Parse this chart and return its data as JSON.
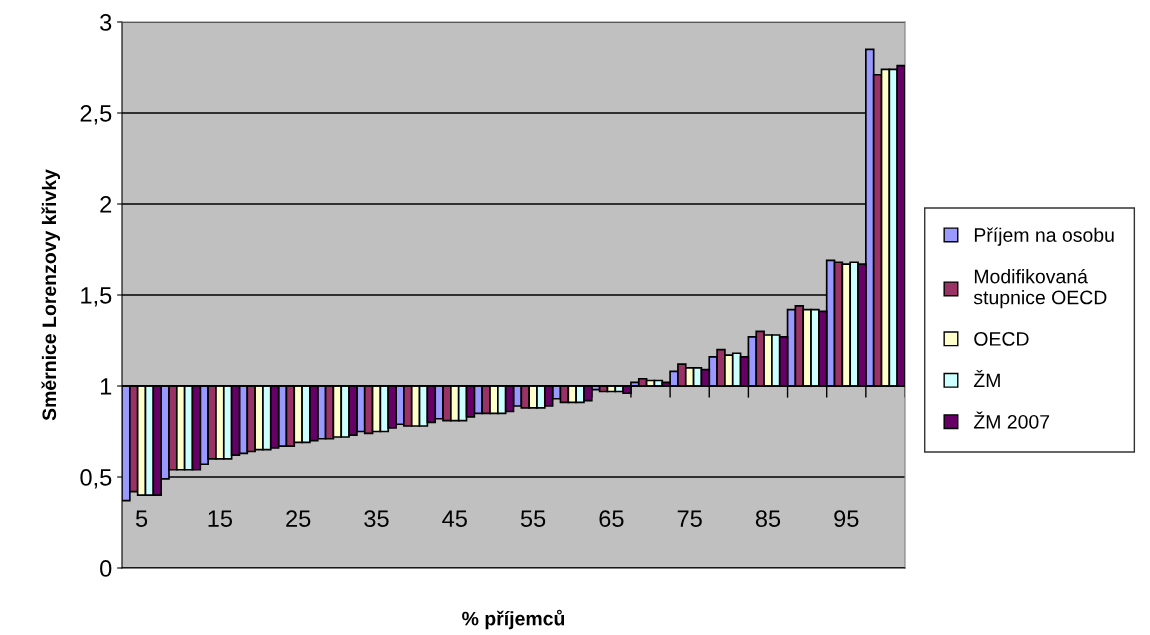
{
  "chart_data": {
    "type": "bar",
    "xlabel": "% příjemců",
    "ylabel": "Směrnice Lorenzovy křivky",
    "categories": [
      "5",
      null,
      "15",
      null,
      "25",
      null,
      "35",
      null,
      "45",
      null,
      "55",
      null,
      "65",
      null,
      "75",
      null,
      "85",
      null,
      "95",
      null
    ],
    "series": [
      {
        "name": "Příjem na osobu",
        "color": "#9999ff",
        "base": [
          1,
          1,
          1,
          1,
          1,
          1,
          1,
          1,
          1,
          1,
          1,
          1,
          1,
          1,
          1,
          1,
          1,
          1,
          1,
          1
        ],
        "values": [
          -0.63,
          -0.51,
          -0.43,
          -0.37,
          -0.33,
          -0.29,
          -0.25,
          -0.21,
          -0.18,
          -0.15,
          -0.11,
          -0.07,
          -0.02,
          0.02,
          0.08,
          0.16,
          0.27,
          0.42,
          0.69,
          1.85
        ]
      },
      {
        "name": "Modifikovaná\nstupnice OECD",
        "color": "#993366",
        "base": [
          1,
          1,
          1,
          1,
          1,
          1,
          1,
          1,
          1,
          1,
          1,
          1,
          1,
          1,
          1,
          1,
          1,
          1,
          1,
          1
        ],
        "values": [
          -0.58,
          -0.46,
          -0.4,
          -0.36,
          -0.33,
          -0.29,
          -0.26,
          -0.22,
          -0.19,
          -0.15,
          -0.12,
          -0.09,
          -0.03,
          0.04,
          0.12,
          0.2,
          0.3,
          0.44,
          0.68,
          1.71
        ]
      },
      {
        "name": "OECD",
        "color": "#ffffcc",
        "base": [
          1,
          1,
          1,
          1,
          1,
          1,
          1,
          1,
          1,
          1,
          1,
          1,
          1,
          1,
          1,
          1,
          1,
          1,
          1,
          1
        ],
        "values": [
          -0.6,
          -0.46,
          -0.4,
          -0.35,
          -0.31,
          -0.28,
          -0.25,
          -0.22,
          -0.19,
          -0.15,
          -0.12,
          -0.09,
          -0.03,
          0.03,
          0.1,
          0.17,
          0.28,
          0.42,
          0.67,
          1.74
        ]
      },
      {
        "name": "ŽM",
        "color": "#ccffff",
        "base": [
          1,
          1,
          1,
          1,
          1,
          1,
          1,
          1,
          1,
          1,
          1,
          1,
          1,
          1,
          1,
          1,
          1,
          1,
          1,
          1
        ],
        "values": [
          -0.6,
          -0.46,
          -0.4,
          -0.35,
          -0.31,
          -0.28,
          -0.25,
          -0.22,
          -0.19,
          -0.15,
          -0.12,
          -0.09,
          -0.03,
          0.03,
          0.1,
          0.18,
          0.28,
          0.42,
          0.68,
          1.74
        ]
      },
      {
        "name": "ŽM 2007",
        "color": "#660066",
        "base": [
          1,
          1,
          1,
          1,
          1,
          1,
          1,
          1,
          1,
          1,
          1,
          1,
          1,
          1,
          1,
          1,
          1,
          1,
          1,
          1
        ],
        "values": [
          -0.6,
          -0.46,
          -0.38,
          -0.34,
          -0.3,
          -0.27,
          -0.23,
          -0.2,
          -0.17,
          -0.14,
          -0.11,
          -0.08,
          -0.04,
          0.02,
          0.09,
          0.16,
          0.27,
          0.41,
          0.67,
          1.76
        ]
      }
    ],
    "ylim": [
      0,
      3
    ],
    "yticks": [
      {
        "value": 0,
        "label": "0"
      },
      {
        "value": 0.5,
        "label": "0,5"
      },
      {
        "value": 1,
        "label": "1"
      },
      {
        "value": 1.5,
        "label": "1,5"
      },
      {
        "value": 2,
        "label": "2"
      },
      {
        "value": 2.5,
        "label": "2,5"
      },
      {
        "value": 3,
        "label": "3"
      }
    ],
    "grid": "y",
    "legend": "right"
  }
}
